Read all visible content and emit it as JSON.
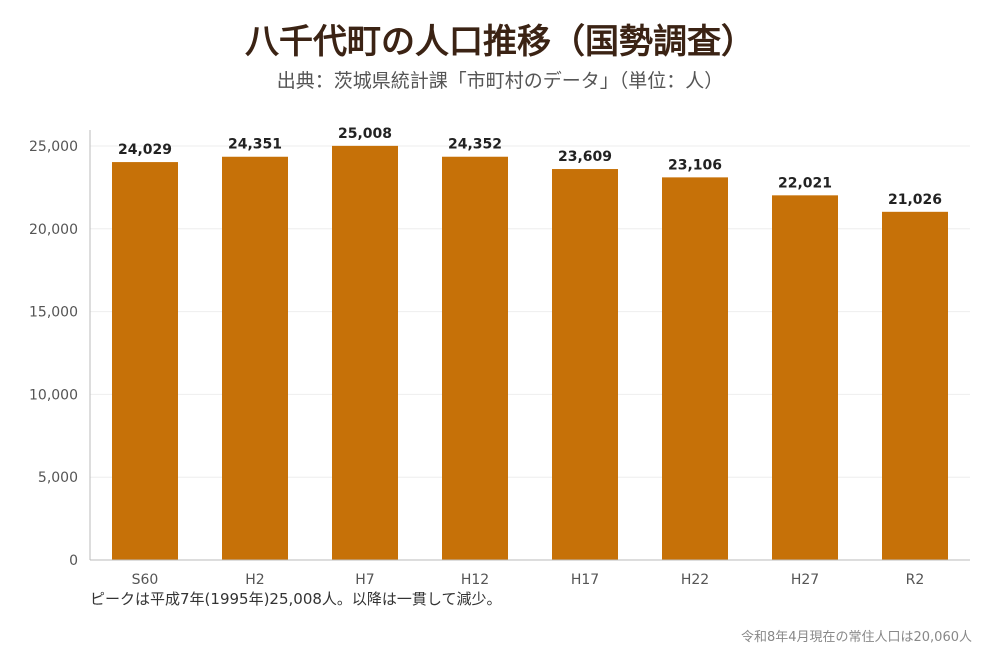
{
  "header": {
    "title": "八千代町の人口推移（国勢調査）",
    "subtitle": "出典：茨城県統計課「市町村のデータ」（単位：人）"
  },
  "footer": {
    "note": "ピークは平成7年(1995年)25,008人。以降は一貫して減少。",
    "source_note": "令和8年4月現在の常住人口は20,060人"
  },
  "colors": {
    "bar": "#c67108",
    "grid": "#eeeeee",
    "axis": "#bbbbbb"
  },
  "chart_data": {
    "type": "bar",
    "categories": [
      "S60",
      "H2",
      "H7",
      "H12",
      "H17",
      "H22",
      "H27",
      "R2"
    ],
    "values": [
      24029,
      24351,
      25008,
      24352,
      23609,
      23106,
      22021,
      21026
    ],
    "data_labels": [
      "24,029",
      "24,351",
      "25,008",
      "24,352",
      "23,609",
      "23,106",
      "22,021",
      "21,026"
    ],
    "yticks": [
      0,
      5000,
      10000,
      15000,
      20000,
      25000
    ],
    "ytick_labels": [
      "0",
      "5,000",
      "10,000",
      "15,000",
      "20,000",
      "25,000"
    ],
    "ylim": [
      0,
      25000
    ],
    "grid": true,
    "legend": "none",
    "xlabel": "",
    "ylabel": ""
  }
}
